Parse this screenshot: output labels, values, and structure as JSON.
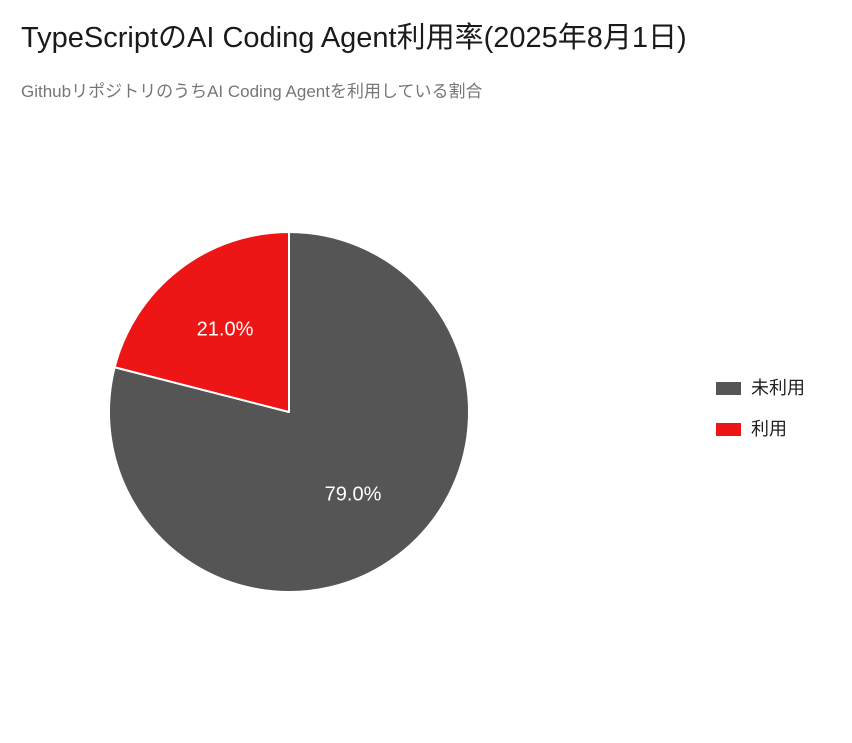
{
  "header": {
    "title": "TypeScriptのAI Coding Agent利用率(2025年8月1日)",
    "subtitle": "GithubリポジトリのうちAI Coding Agentを利用している割合"
  },
  "chart_data": {
    "type": "pie",
    "title": "TypeScriptのAI Coding Agent利用率(2025年8月1日)",
    "subtitle": "GithubリポジトリのうちAI Coding Agentを利用している割合",
    "categories": [
      "未利用",
      "利用"
    ],
    "values": [
      79.0,
      21.0
    ],
    "value_labels": [
      "79.0%",
      "21.0%"
    ],
    "colors": [
      "#555555",
      "#ed1515"
    ],
    "label_color": "#ffffff",
    "wedge_border_color": "#ffffff",
    "start_angle": "top",
    "direction": "clockwise",
    "legend_position": "right"
  },
  "legend": {
    "items": [
      {
        "label": "未利用",
        "color": "#555555"
      },
      {
        "label": "利用",
        "color": "#ed1515"
      }
    ]
  }
}
